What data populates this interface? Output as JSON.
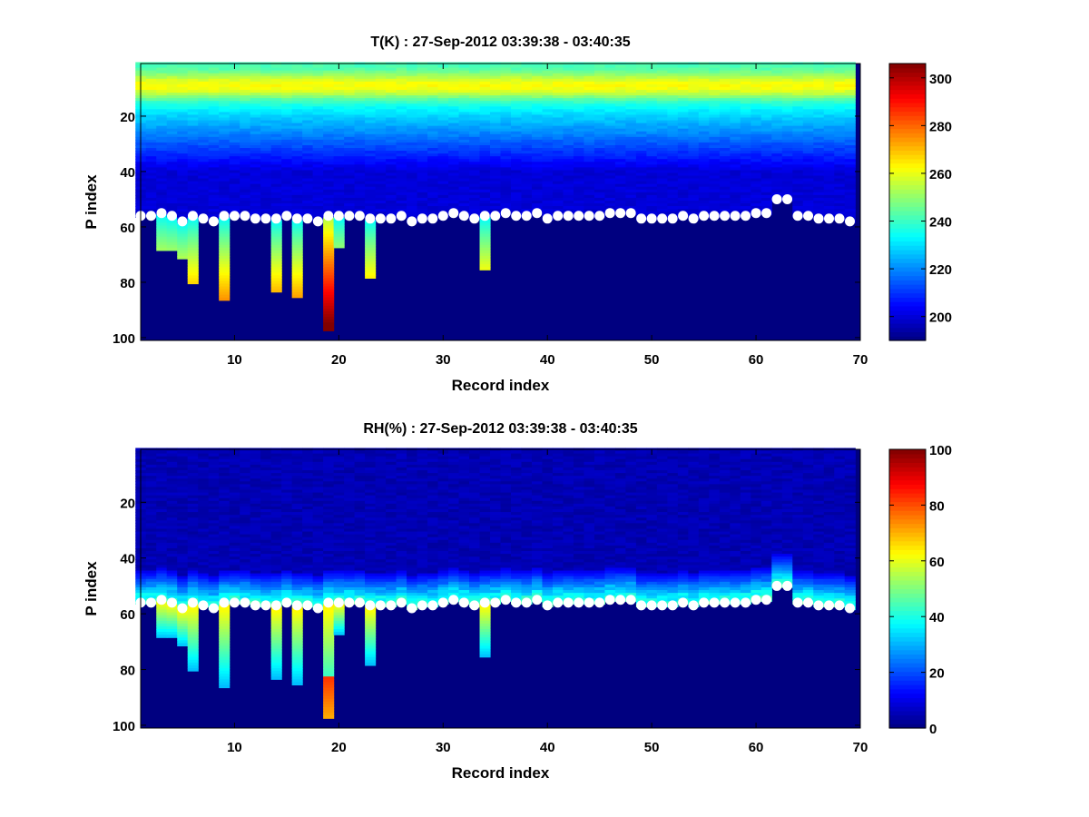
{
  "chart_data": [
    {
      "type": "heatmap",
      "title": "T(K) : 27-Sep-2012 03:39:38 - 03:40:35",
      "xlabel": "Record index",
      "ylabel": "P index",
      "xlim": [
        1,
        70
      ],
      "ylim": [
        1,
        101
      ],
      "y_reversed": true,
      "xticks": [
        10,
        20,
        30,
        40,
        50,
        60,
        70
      ],
      "yticks": [
        20,
        40,
        60,
        80,
        100
      ],
      "colormap": "jet",
      "clim": [
        190,
        306
      ],
      "colorbar_ticks": [
        200,
        220,
        240,
        260,
        280,
        300
      ],
      "marker_color": "#ffffff",
      "surface_p_index": [
        56,
        56,
        55,
        56,
        58,
        56,
        57,
        58,
        56,
        56,
        56,
        57,
        57,
        57,
        56,
        57,
        57,
        58,
        56,
        56,
        56,
        56,
        57,
        57,
        57,
        56,
        58,
        57,
        57,
        56,
        55,
        56,
        57,
        56,
        56,
        55,
        56,
        56,
        55,
        57,
        56,
        56,
        56,
        56,
        56,
        55,
        55,
        55,
        57,
        57,
        57,
        57,
        56,
        57,
        56,
        56,
        56,
        56,
        56,
        55,
        55,
        50,
        50,
        56,
        56,
        57,
        57,
        57,
        58
      ],
      "subsurface_bottom": [
        {
          "record": 3,
          "p_index": 68
        },
        {
          "record": 4,
          "p_index": 68
        },
        {
          "record": 5,
          "p_index": 71
        },
        {
          "record": 6,
          "p_index": 80
        },
        {
          "record": 9,
          "p_index": 86
        },
        {
          "record": 14,
          "p_index": 83
        },
        {
          "record": 16,
          "p_index": 85
        },
        {
          "record": 19,
          "p_index": 97
        },
        {
          "record": 20,
          "p_index": 67
        },
        {
          "record": 23,
          "p_index": 78
        },
        {
          "record": 34,
          "p_index": 75
        }
      ]
    },
    {
      "type": "heatmap",
      "title": "RH(%) : 27-Sep-2012 03:39:38 - 03:40:35",
      "xlabel": "Record index",
      "ylabel": "P index",
      "xlim": [
        1,
        70
      ],
      "ylim": [
        1,
        101
      ],
      "y_reversed": true,
      "xticks": [
        10,
        20,
        30,
        40,
        50,
        60,
        70
      ],
      "yticks": [
        20,
        40,
        60,
        80,
        100
      ],
      "colormap": "jet",
      "clim": [
        0,
        100
      ],
      "colorbar_ticks": [
        0,
        20,
        40,
        60,
        80,
        100
      ],
      "marker_color": "#ffffff",
      "surface_p_index": [
        56,
        56,
        55,
        56,
        58,
        56,
        57,
        58,
        56,
        56,
        56,
        57,
        57,
        57,
        56,
        57,
        57,
        58,
        56,
        56,
        56,
        56,
        57,
        57,
        57,
        56,
        58,
        57,
        57,
        56,
        55,
        56,
        57,
        56,
        56,
        55,
        56,
        56,
        55,
        57,
        56,
        56,
        56,
        56,
        56,
        55,
        55,
        55,
        57,
        57,
        57,
        57,
        56,
        57,
        56,
        56,
        56,
        56,
        56,
        55,
        55,
        50,
        50,
        56,
        56,
        57,
        57,
        57,
        58
      ],
      "subsurface_bottom": [
        {
          "record": 3,
          "p_index": 68
        },
        {
          "record": 4,
          "p_index": 68
        },
        {
          "record": 5,
          "p_index": 71
        },
        {
          "record": 6,
          "p_index": 80
        },
        {
          "record": 9,
          "p_index": 86
        },
        {
          "record": 14,
          "p_index": 83
        },
        {
          "record": 16,
          "p_index": 85
        },
        {
          "record": 19,
          "p_index": 97
        },
        {
          "record": 20,
          "p_index": 67
        },
        {
          "record": 23,
          "p_index": 78
        },
        {
          "record": 34,
          "p_index": 75
        }
      ]
    }
  ]
}
